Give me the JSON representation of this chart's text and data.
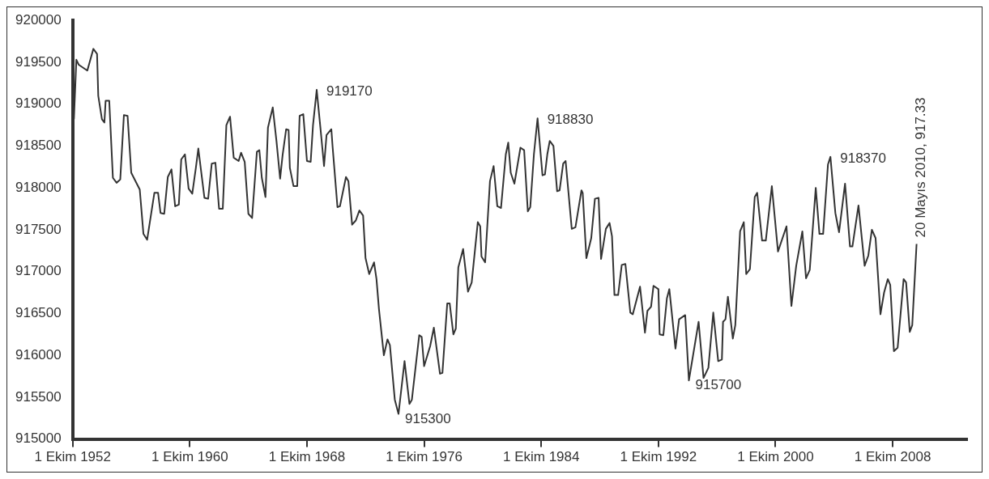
{
  "chart_data": {
    "type": "line",
    "color": "#333333",
    "marker": "none",
    "line_style": "solid",
    "x": [
      "1952-11",
      "1953-01",
      "1953-03",
      "1953-10",
      "1954-03",
      "1954-06",
      "1954-07",
      "1954-10",
      "1954-12",
      "1955-01",
      "1955-04",
      "1955-07",
      "1955-10",
      "1956-01",
      "1956-04",
      "1956-07",
      "1956-10",
      "1957-05",
      "1957-08",
      "1957-11",
      "1958-05",
      "1958-08",
      "1958-10",
      "1959-01",
      "1959-04",
      "1959-07",
      "1959-10",
      "1960-01",
      "1960-03",
      "1960-06",
      "1960-09",
      "1960-12",
      "1961-03",
      "1961-05",
      "1961-10",
      "1962-01",
      "1962-04",
      "1962-07",
      "1962-10",
      "1963-01",
      "1963-04",
      "1963-07",
      "1963-10",
      "1964-02",
      "1964-04",
      "1964-07",
      "1964-10",
      "1965-01",
      "1965-05",
      "1965-07",
      "1965-09",
      "1965-12",
      "1966-02",
      "1966-06",
      "1966-09",
      "1966-12",
      "1967-02",
      "1967-05",
      "1967-07",
      "1967-08",
      "1967-11",
      "1968-02",
      "1968-04",
      "1968-07",
      "1968-10",
      "1969-01",
      "1969-03",
      "1969-06",
      "1969-09",
      "1969-12",
      "1970-02",
      "1970-06",
      "1970-07",
      "1970-11",
      "1971-01",
      "1971-06",
      "1971-08",
      "1971-11",
      "1972-02",
      "1972-05",
      "1972-08",
      "1972-10",
      "1973-01",
      "1973-05",
      "1973-07",
      "1973-09",
      "1974-01",
      "1974-04",
      "1974-06",
      "1974-10",
      "1975-01",
      "1975-06",
      "1975-10",
      "1975-12",
      "1976-06",
      "1976-08",
      "1976-10",
      "1977-03",
      "1977-06",
      "1977-11",
      "1978-01",
      "1978-05",
      "1978-07",
      "1978-10",
      "1978-12",
      "1979-02",
      "1979-06",
      "1979-10",
      "1980-01",
      "1980-06",
      "1980-08",
      "1980-09",
      "1980-12",
      "1981-04",
      "1981-07",
      "1981-10",
      "1982-01",
      "1982-05",
      "1982-07",
      "1982-09",
      "1982-12",
      "1983-05",
      "1983-08",
      "1983-11",
      "1984-01",
      "1984-04",
      "1984-07",
      "1984-11",
      "1985-01",
      "1985-03",
      "1985-05",
      "1985-08",
      "1985-11",
      "1986-01",
      "1986-04",
      "1986-06",
      "1986-11",
      "1987-02",
      "1987-07",
      "1987-08",
      "1987-11",
      "1988-03",
      "1988-06",
      "1988-09",
      "1988-11",
      "1989-03",
      "1989-06",
      "1989-08",
      "1989-10",
      "1990-01",
      "1990-04",
      "1990-07",
      "1990-11",
      "1991-01",
      "1991-07",
      "1991-11",
      "1992-01",
      "1992-04",
      "1992-06",
      "1992-10",
      "1992-11",
      "1993-02",
      "1993-05",
      "1993-07",
      "1993-12",
      "1994-03",
      "1994-08",
      "1994-11",
      "1995-07",
      "1995-11",
      "1996-03",
      "1996-07",
      "1996-11",
      "1997-02",
      "1997-03",
      "1997-05",
      "1997-07",
      "1997-11",
      "1998-01",
      "1998-05",
      "1998-08",
      "1998-10",
      "1999-01",
      "1999-05",
      "1999-07",
      "1999-11",
      "2000-02",
      "2000-07",
      "2000-12",
      "2001-07",
      "2001-11",
      "2002-03",
      "2002-08",
      "2002-11",
      "2003-02",
      "2003-07",
      "2003-10",
      "2004-01",
      "2004-05",
      "2004-07",
      "2004-11",
      "2005-02",
      "2005-07",
      "2005-11",
      "2006-01",
      "2006-06",
      "2006-11",
      "2007-02",
      "2007-05",
      "2007-08",
      "2007-12",
      "2008-03",
      "2008-06",
      "2008-08",
      "2008-11",
      "2009-02",
      "2009-07",
      "2009-09",
      "2009-12",
      "2010-02",
      "2010-05-20"
    ],
    "values": [
      918820,
      919530,
      919470,
      919400,
      919660,
      919600,
      919100,
      918820,
      918780,
      919040,
      919040,
      918120,
      918060,
      918100,
      918870,
      918860,
      918180,
      917980,
      917450,
      917380,
      917940,
      917940,
      917700,
      917690,
      918130,
      918220,
      917780,
      917800,
      918340,
      918400,
      917990,
      917930,
      918240,
      918470,
      917880,
      917870,
      918290,
      918300,
      917750,
      917750,
      918750,
      918850,
      918360,
      918320,
      918420,
      918310,
      917690,
      917640,
      918430,
      918450,
      918120,
      917890,
      918720,
      918960,
      918560,
      918110,
      918390,
      918700,
      918690,
      918240,
      918020,
      918020,
      918860,
      918880,
      918320,
      918310,
      918750,
      919170,
      918720,
      918260,
      918630,
      918700,
      918500,
      917770,
      917780,
      918130,
      918080,
      917560,
      917610,
      917730,
      917670,
      917160,
      916970,
      917110,
      916910,
      916550,
      916000,
      916190,
      916120,
      915470,
      915300,
      915930,
      915420,
      915470,
      916240,
      916220,
      915870,
      916110,
      916330,
      915780,
      915790,
      916620,
      916620,
      916250,
      916320,
      917050,
      917270,
      916760,
      916870,
      917590,
      917540,
      917180,
      917110,
      918080,
      918260,
      917780,
      917760,
      918400,
      918540,
      918180,
      918050,
      918480,
      918450,
      917720,
      917770,
      918400,
      918830,
      918150,
      918160,
      918400,
      918560,
      918500,
      917960,
      917970,
      918290,
      918320,
      917510,
      917530,
      917970,
      917940,
      917160,
      917400,
      917870,
      917880,
      917150,
      917510,
      917580,
      917420,
      916720,
      916720,
      917080,
      917090,
      916510,
      916490,
      916820,
      916270,
      916530,
      916580,
      916830,
      916790,
      916250,
      916240,
      916680,
      916790,
      916080,
      916430,
      916480,
      915700,
      916400,
      915730,
      915850,
      916510,
      915930,
      915950,
      916400,
      916430,
      916700,
      916200,
      916360,
      917480,
      917590,
      916970,
      917030,
      917890,
      917940,
      917370,
      917370,
      918020,
      917240,
      917540,
      916590,
      917070,
      917480,
      916920,
      917020,
      918000,
      917450,
      917450,
      918280,
      918370,
      917700,
      917470,
      918050,
      917300,
      917300,
      917790,
      917070,
      917190,
      917500,
      917400,
      916490,
      916750,
      916910,
      916840,
      916050,
      916090,
      916910,
      916870,
      916280,
      916360,
      917330
    ],
    "xlim": [
      "1952-10-01",
      "2013-11"
    ],
    "xticks": [
      {
        "value": "1952-10-01",
        "label": "1 Ekim 1952"
      },
      {
        "value": "1960-10-01",
        "label": "1 Ekim 1960"
      },
      {
        "value": "1968-10-01",
        "label": "1 Ekim 1968"
      },
      {
        "value": "1976-10-01",
        "label": "1 Ekim 1976"
      },
      {
        "value": "1984-10-01",
        "label": "1 Ekim 1984"
      },
      {
        "value": "1992-10-01",
        "label": "1 Ekim 1992"
      },
      {
        "value": "2000-10-01",
        "label": "1 Ekim 2000"
      },
      {
        "value": "2008-10-01",
        "label": "1 Ekim 2008"
      }
    ],
    "ylim": [
      915000,
      920000
    ],
    "yticks": [
      915000,
      915500,
      916000,
      916500,
      917000,
      917500,
      918000,
      918500,
      919000,
      919500,
      920000
    ],
    "annotations": [
      {
        "text": "919170",
        "x": "1969-06",
        "y": 919170
      },
      {
        "text": "915300",
        "x": "1975-01",
        "y": 915300
      },
      {
        "text": "918830",
        "x": "1984-07",
        "y": 918830
      },
      {
        "text": "915700",
        "x": "1994-11",
        "y": 915700
      },
      {
        "text": "918370",
        "x": "2004-07",
        "y": 918370
      },
      {
        "text": "20 Mayıs 2010, 917.33",
        "x": "2010-05-20",
        "y": 917330
      }
    ]
  }
}
